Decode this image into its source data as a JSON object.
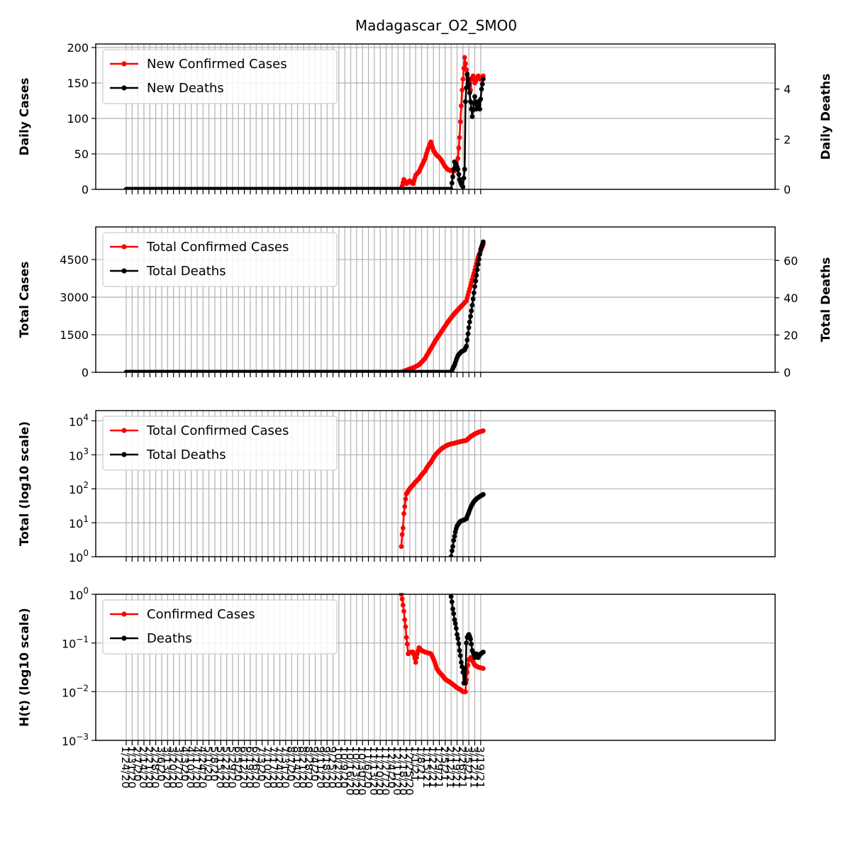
{
  "figure": {
    "title": "Madagascar_O2_SMO0"
  },
  "colors": {
    "confirmed": "#ff0000",
    "deaths": "#000000",
    "grid": "#b0b0b0"
  },
  "x_tick_labels": [
    "1/24/20",
    "1/31/20",
    "2/7/20",
    "2/14/20",
    "2/21/20",
    "2/28/20",
    "3/6/20",
    "3/13/20",
    "3/20/20",
    "3/27/20",
    "4/3/20",
    "4/10/20",
    "4/17/20",
    "4/24/20",
    "5/1/20",
    "5/8/20",
    "5/15/20",
    "5/22/20",
    "5/29/20",
    "6/5/20",
    "6/12/20",
    "6/19/20",
    "6/26/20",
    "7/3/20",
    "7/10/20",
    "7/17/20",
    "7/24/20",
    "7/31/20",
    "8/7/20",
    "8/14/20",
    "8/21/20",
    "8/28/20",
    "9/4/20",
    "9/11/20",
    "9/18/20",
    "9/25/20",
    "10/2/20",
    "10/9/20",
    "10/16/20",
    "10/23/20",
    "10/30/20",
    "11/6/20",
    "11/13/20",
    "11/20/20",
    "11/27/20",
    "12/4/20",
    "12/11/20",
    "12/18/20",
    "12/25/20",
    "1/1/21",
    "1/8/21",
    "1/15/21",
    "1/22/21",
    "1/29/21",
    "2/5/21",
    "2/12/21",
    "2/19/21",
    "2/26/21",
    "3/5/21",
    "3/12/21",
    "3/19/21"
  ],
  "chart_data": [
    {
      "type": "line",
      "ylabel": "Daily Cases",
      "ylabel_right": "Daily Deaths",
      "ylim": [
        0,
        205
      ],
      "ylim_right": [
        0,
        5.8
      ],
      "yticks": [
        "0",
        "50",
        "100",
        "150",
        "200"
      ],
      "yticks_right": [
        "0",
        "2",
        "4"
      ],
      "legend_placement": "top-left",
      "grid": true,
      "series": [
        {
          "name": "New Confirmed Cases",
          "axis": "left",
          "x": [
            "1/24/20",
            "12/15/20",
            "12/18/20",
            "12/21/20",
            "12/25/20",
            "12/29/20",
            "1/1/21",
            "1/5/21",
            "1/8/21",
            "1/12/21",
            "1/15/21",
            "1/19/21",
            "1/22/21",
            "1/26/21",
            "1/29/21",
            "2/1/21",
            "2/5/21",
            "2/8/21",
            "2/12/21",
            "2/16/21",
            "2/19/21",
            "2/22/21",
            "2/25/21",
            "2/28/21",
            "3/3/21",
            "3/5/21",
            "3/7/21",
            "3/8/21",
            "3/10/21",
            "3/12/21",
            "3/14/21",
            "3/16/21",
            "3/19/21",
            "3/22/21"
          ],
          "values": [
            0,
            0,
            14,
            8,
            12,
            8,
            20,
            25,
            33,
            43,
            55,
            67,
            55,
            48,
            45,
            40,
            32,
            28,
            26,
            26,
            29,
            73,
            140,
            186,
            160,
            150,
            140,
            155,
            160,
            150,
            155,
            160,
            155,
            160
          ]
        },
        {
          "name": "New Deaths",
          "axis": "right",
          "x": [
            "1/24/20",
            "2/12/21",
            "2/14/21",
            "2/16/21",
            "2/18/21",
            "2/20/21",
            "2/22/21",
            "2/24/21",
            "2/26/21",
            "2/28/21",
            "3/1/21",
            "3/3/21",
            "3/5/21",
            "3/7/21",
            "3/9/21",
            "3/12/21",
            "3/14/21",
            "3/16/21",
            "3/18/21",
            "3/20/21",
            "3/22/21"
          ],
          "values": [
            0,
            0,
            0.5,
            1.1,
            1.0,
            0.8,
            0.4,
            0.2,
            0.1,
            0.8,
            3.5,
            4.6,
            4.2,
            3.5,
            2.9,
            3.7,
            3.2,
            3.5,
            3.2,
            4.0,
            4.4
          ]
        }
      ]
    },
    {
      "type": "line",
      "ylabel": "Total Cases",
      "ylabel_right": "Total Deaths",
      "ylim": [
        0,
        5800
      ],
      "ylim_right": [
        0,
        78
      ],
      "yticks": [
        "0",
        "1500",
        "3000",
        "4500"
      ],
      "yticks_right": [
        "0",
        "20",
        "40",
        "60"
      ],
      "legend_placement": "top-left",
      "grid": true,
      "series": [
        {
          "name": "Total Confirmed Cases",
          "axis": "left",
          "x": [
            "1/24/20",
            "12/15/20",
            "12/22/20",
            "12/29/20",
            "1/5/21",
            "1/12/21",
            "1/19/21",
            "1/26/21",
            "2/2/21",
            "2/9/21",
            "2/16/21",
            "2/23/21",
            "3/2/21",
            "3/9/21",
            "3/16/21",
            "3/22/21"
          ],
          "values": [
            0,
            0,
            100,
            180,
            300,
            550,
            950,
            1350,
            1700,
            2050,
            2350,
            2600,
            2850,
            3700,
            4600,
            5100
          ]
        },
        {
          "name": "Total Deaths",
          "axis": "right",
          "x": [
            "1/24/20",
            "2/12/21",
            "2/16/21",
            "2/20/21",
            "2/24/21",
            "2/28/21",
            "3/2/21",
            "3/5/21",
            "3/9/21",
            "3/12/21",
            "3/16/21",
            "3/19/21",
            "3/22/21"
          ],
          "values": [
            0,
            0,
            4,
            9,
            11,
            12,
            14,
            24,
            36,
            46,
            58,
            66,
            70
          ]
        }
      ]
    },
    {
      "type": "line",
      "ylabel": "Total (log10 scale)",
      "yscale": "log",
      "ylim": [
        1,
        20000
      ],
      "yticks": [
        "10^0",
        "10^1",
        "10^2",
        "10^3",
        "10^4"
      ],
      "legend_placement": "top-left",
      "grid": true,
      "series": [
        {
          "name": "Total Confirmed Cases",
          "x": [
            "12/15/20",
            "12/17/20",
            "12/19/20",
            "12/21/20",
            "12/25/20",
            "12/29/20",
            "1/5/21",
            "1/12/21",
            "1/19/21",
            "1/26/21",
            "2/2/21",
            "2/9/21",
            "2/16/21",
            "2/23/21",
            "3/2/21",
            "3/9/21",
            "3/16/21",
            "3/22/21"
          ],
          "values": [
            2,
            7,
            30,
            70,
            100,
            130,
            200,
            330,
            600,
            1100,
            1600,
            2000,
            2200,
            2450,
            2650,
            3700,
            4600,
            5100
          ]
        },
        {
          "name": "Total Deaths",
          "x": [
            "2/12/21",
            "2/14/21",
            "2/16/21",
            "2/19/21",
            "2/23/21",
            "3/2/21",
            "3/5/21",
            "3/9/21",
            "3/12/21",
            "3/16/21",
            "3/22/21"
          ],
          "values": [
            1,
            2,
            4,
            8,
            11,
            13,
            20,
            35,
            45,
            55,
            68
          ]
        }
      ]
    },
    {
      "type": "line",
      "ylabel": "H(t) (log10 scale)",
      "yscale": "log",
      "ylim": [
        0.001,
        1
      ],
      "yticks": [
        "10^-3",
        "10^-2",
        "10^-1",
        "10^0"
      ],
      "legend_placement": "top-left",
      "grid": true,
      "series": [
        {
          "name": "Confirmed Cases",
          "x": [
            "12/15/20",
            "12/17/20",
            "12/19/20",
            "12/21/20",
            "12/23/20",
            "12/26/20",
            "12/29/20",
            "1/1/21",
            "1/5/21",
            "1/8/21",
            "1/12/21",
            "1/19/21",
            "1/26/21",
            "1/29/21",
            "2/5/21",
            "2/12/21",
            "2/19/21",
            "2/23/21",
            "2/26/21",
            "3/1/21",
            "3/3/21",
            "3/5/21",
            "3/7/21",
            "3/12/21",
            "3/16/21",
            "3/22/21"
          ],
          "values": [
            1,
            0.6,
            0.3,
            0.13,
            0.06,
            0.065,
            0.065,
            0.04,
            0.08,
            0.07,
            0.065,
            0.06,
            0.03,
            0.025,
            0.018,
            0.015,
            0.012,
            0.011,
            0.01,
            0.01,
            0.025,
            0.045,
            0.05,
            0.035,
            0.032,
            0.03
          ]
        },
        {
          "name": "Deaths",
          "x": [
            "2/12/21",
            "2/14/21",
            "2/16/21",
            "2/19/21",
            "2/22/21",
            "2/24/21",
            "2/26/21",
            "2/27/21",
            "2/28/21",
            "3/1/21",
            "3/2/21",
            "3/3/21",
            "3/5/21",
            "3/7/21",
            "3/9/21",
            "3/12/21",
            "3/14/21",
            "3/16/21",
            "3/19/21",
            "3/22/21"
          ],
          "values": [
            0.9,
            0.5,
            0.3,
            0.15,
            0.07,
            0.04,
            0.025,
            0.015,
            0.03,
            0.015,
            0.1,
            0.13,
            0.15,
            0.12,
            0.07,
            0.05,
            0.06,
            0.05,
            0.06,
            0.065
          ]
        }
      ]
    }
  ]
}
